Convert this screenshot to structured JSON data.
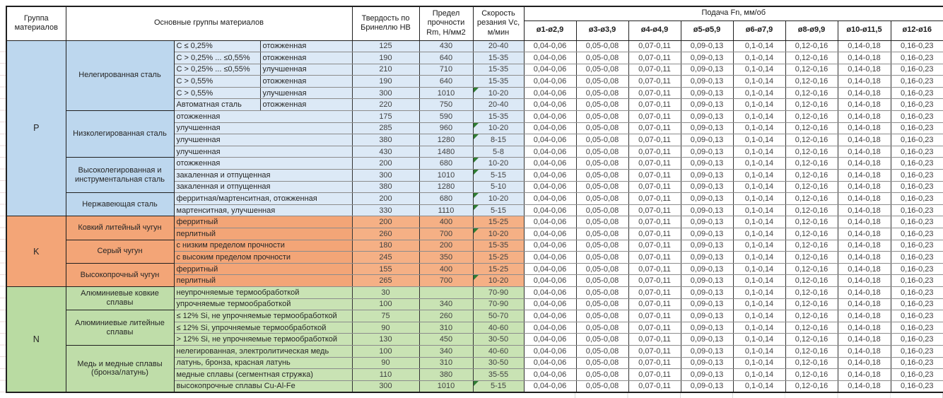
{
  "chart_data": {
    "type": "table",
    "title": "",
    "headers": {
      "group": "Группа материалов",
      "material": "Основные группы материалов",
      "hardness": "Твердость по Бринеллю HB",
      "strength": "Предел прочности Rm, Н/мм2",
      "speed": "Скорость резания Vc, м/мин",
      "feed": "Подача Fn, мм/об",
      "feed_cols": [
        "ø1-ø2,9",
        "ø3-ø3,9",
        "ø4-ø4,9",
        "ø5-ø5,9",
        "ø6-ø7,9",
        "ø8-ø9,9",
        "ø10-ø11,5",
        "ø12-ø16"
      ]
    },
    "feed_values": [
      "0,04-0,06",
      "0,05-0,08",
      "0,07-0,11",
      "0,09-0,13",
      "0,1-0,14",
      "0,12-0,16",
      "0,14-0,18",
      "0,16-0,23"
    ],
    "flag_color": "#2e7d32",
    "groups": [
      {
        "id": "P",
        "colors": {
          "group_bg": "#BDD7EE",
          "material_bg": "#BDD7EE",
          "detail_bg": "#DCE9F6",
          "value_bg": "#DCE9F6"
        },
        "materials": [
          {
            "name": "Нелегированная сталь",
            "rows": [
              {
                "detail": [
                  "C ≤ 0,25%",
                  "отожженная"
                ],
                "hb": "125",
                "rm": "430",
                "vc": "20-40",
                "flag": false
              },
              {
                "detail": [
                  "C > 0,25% ... ≤0,55%",
                  "отожженная"
                ],
                "hb": "190",
                "rm": "640",
                "vc": "15-35",
                "flag": false
              },
              {
                "detail": [
                  "C > 0,25% ... ≤0,55%",
                  "улучшенная"
                ],
                "hb": "210",
                "rm": "710",
                "vc": "15-35",
                "flag": false
              },
              {
                "detail": [
                  "C > 0,55%",
                  "отожженная"
                ],
                "hb": "190",
                "rm": "640",
                "vc": "15-35",
                "flag": false
              },
              {
                "detail": [
                  "C > 0,55%",
                  "улучшенная"
                ],
                "hb": "300",
                "rm": "1010",
                "vc": "10-20",
                "flag": true
              },
              {
                "detail": [
                  "Автоматная сталь",
                  "отожженная"
                ],
                "hb": "220",
                "rm": "750",
                "vc": "20-40",
                "flag": false
              }
            ]
          },
          {
            "name": "Низколегированная сталь",
            "rows": [
              {
                "detail": [
                  "отожженная"
                ],
                "hb": "175",
                "rm": "590",
                "vc": "15-35",
                "flag": false
              },
              {
                "detail": [
                  "улучшенная"
                ],
                "hb": "285",
                "rm": "960",
                "vc": "10-20",
                "flag": true
              },
              {
                "detail": [
                  "улучшенная"
                ],
                "hb": "380",
                "rm": "1280",
                "vc": "8-15",
                "flag": true
              },
              {
                "detail": [
                  "улучшенная"
                ],
                "hb": "430",
                "rm": "1480",
                "vc": "5-8",
                "flag": false
              }
            ]
          },
          {
            "name": "Высоколегированная и инструментальная сталь",
            "rows": [
              {
                "detail": [
                  "отожженная"
                ],
                "hb": "200",
                "rm": "680",
                "vc": "10-20",
                "flag": true
              },
              {
                "detail": [
                  "закаленная и отпущенная"
                ],
                "hb": "300",
                "rm": "1010",
                "vc": "5-15",
                "flag": true
              },
              {
                "detail": [
                  "закаленная и отпущенная"
                ],
                "hb": "380",
                "rm": "1280",
                "vc": "5-10",
                "flag": false
              }
            ]
          },
          {
            "name": "Нержавеющая сталь",
            "rows": [
              {
                "detail": [
                  "ферритная/мартенситная, отожженная"
                ],
                "hb": "200",
                "rm": "680",
                "vc": "10-20",
                "flag": true
              },
              {
                "detail": [
                  "мартенситная, улучшенная"
                ],
                "hb": "330",
                "rm": "1110",
                "vc": "5-15",
                "flag": true
              }
            ]
          }
        ]
      },
      {
        "id": "K",
        "colors": {
          "group_bg": "#F3A577",
          "material_bg": "#F3A577",
          "detail_bg": "#F3A577",
          "value_bg": "#F5B085"
        },
        "materials": [
          {
            "name": "Ковкий литейный чугун",
            "rows": [
              {
                "detail": [
                  "ферритный"
                ],
                "hb": "200",
                "rm": "400",
                "vc": "15-25",
                "flag": false
              },
              {
                "detail": [
                  "перлитный"
                ],
                "hb": "260",
                "rm": "700",
                "vc": "10-20",
                "flag": true
              }
            ]
          },
          {
            "name": "Серый чугун",
            "rows": [
              {
                "detail": [
                  "с низким пределом прочности"
                ],
                "hb": "180",
                "rm": "200",
                "vc": "15-35",
                "flag": false
              },
              {
                "detail": [
                  "с высоким пределом прочности"
                ],
                "hb": "245",
                "rm": "350",
                "vc": "15-25",
                "flag": false
              }
            ]
          },
          {
            "name": "Высокопрочный чугун",
            "rows": [
              {
                "detail": [
                  "ферритный"
                ],
                "hb": "155",
                "rm": "400",
                "vc": "15-25",
                "flag": false
              },
              {
                "detail": [
                  "перлитный"
                ],
                "hb": "265",
                "rm": "700",
                "vc": "10-20",
                "flag": true
              }
            ]
          }
        ]
      },
      {
        "id": "N",
        "colors": {
          "group_bg": "#B9DBA2",
          "material_bg": "#BFDDA9",
          "detail_bg": "#C9E3B4",
          "value_bg": "#C9E3B4"
        },
        "materials": [
          {
            "name": "Алюминиевые ковкие сплавы",
            "rows": [
              {
                "detail": [
                  "неупрочняемые термообработкой"
                ],
                "hb": "30",
                "rm": "",
                "vc": "70-90",
                "flag": false
              },
              {
                "detail": [
                  "упрочняемые термообработкой"
                ],
                "hb": "100",
                "rm": "340",
                "vc": "70-90",
                "flag": false
              }
            ]
          },
          {
            "name": "Алюминиевые литейные сплавы",
            "rows": [
              {
                "detail": [
                  "≤ 12% Si, не упрочняемые термообработкой"
                ],
                "hb": "75",
                "rm": "260",
                "vc": "50-70",
                "flag": false
              },
              {
                "detail": [
                  "≤ 12% Si, упрочняемые термообработкой"
                ],
                "hb": "90",
                "rm": "310",
                "vc": "40-60",
                "flag": false
              },
              {
                "detail": [
                  "> 12% Si, не упрочняемые термообработкой"
                ],
                "hb": "130",
                "rm": "450",
                "vc": "30-50",
                "flag": false
              }
            ]
          },
          {
            "name": "Медь и медные сплавы (бронза/латунь)",
            "rows": [
              {
                "detail": [
                  "нелегированная, электролитическая медь"
                ],
                "hb": "100",
                "rm": "340",
                "vc": "40-60",
                "flag": false
              },
              {
                "detail": [
                  "латунь, бронза, красная латунь"
                ],
                "hb": "90",
                "rm": "310",
                "vc": "30-50",
                "flag": false
              },
              {
                "detail": [
                  "медные сплавы (сегментная стружка)"
                ],
                "hb": "110",
                "rm": "380",
                "vc": "35-55",
                "flag": false
              },
              {
                "detail": [
                  "высокопрочные сплавы Cu-Al-Fe"
                ],
                "hb": "300",
                "rm": "1010",
                "vc": "5-15",
                "flag": true
              }
            ]
          }
        ]
      }
    ]
  }
}
